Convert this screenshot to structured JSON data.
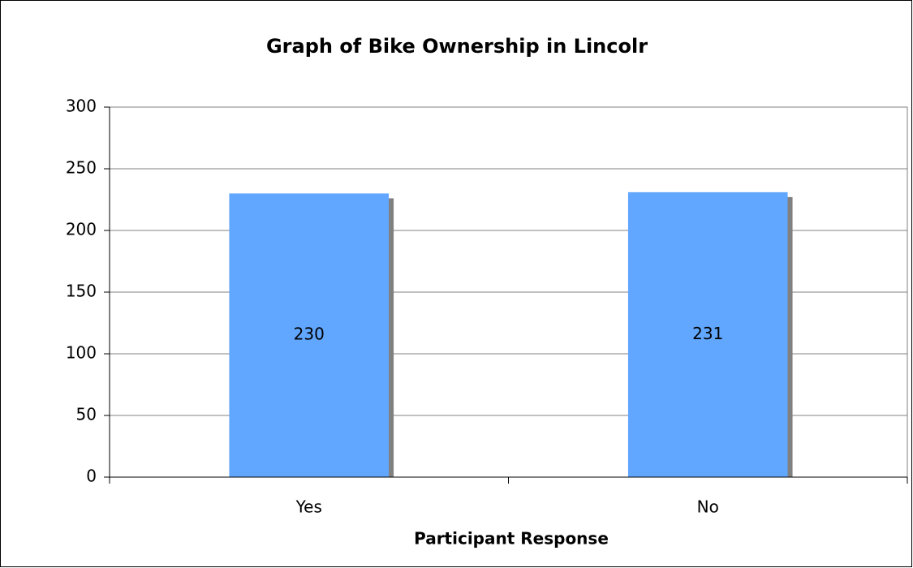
{
  "chart_data": {
    "type": "bar",
    "title": "Graph of Bike Ownership in Lincolr",
    "x_label": "Participant Response",
    "categories": [
      "Yes",
      "No"
    ],
    "values": [
      230,
      231
    ],
    "color": "#61a7ff",
    "ylim": [
      0,
      300
    ],
    "yticks": [
      0,
      50,
      100,
      150,
      200,
      250,
      300
    ],
    "grid": true
  }
}
